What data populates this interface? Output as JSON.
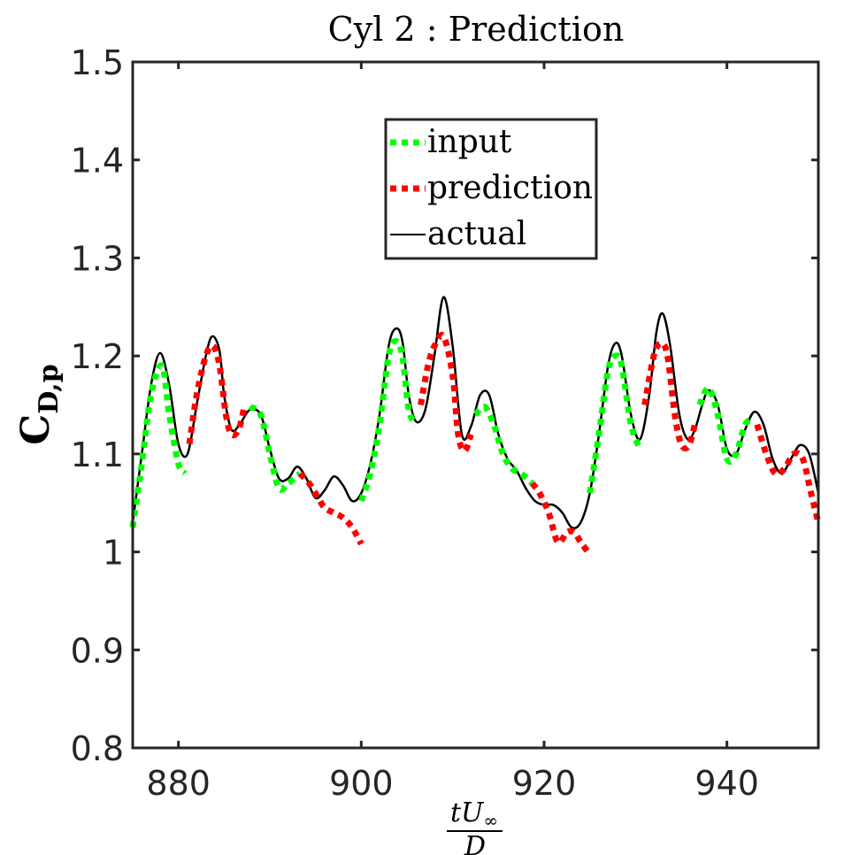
{
  "chart_data": {
    "type": "line",
    "title": "Cyl 2 : Prediction",
    "ylabel_main": "C",
    "ylabel_sub": "D,p",
    "xlabel_num": "tU",
    "xlabel_num_sub": "∞",
    "xlabel_den": "D",
    "xlim": [
      875,
      950
    ],
    "ylim": [
      0.8,
      1.5
    ],
    "xticks": [
      880,
      900,
      920,
      940
    ],
    "xtick_labels": [
      "880",
      "900",
      "920",
      "940"
    ],
    "yticks": [
      0.8,
      0.9,
      1.0,
      1.1,
      1.2,
      1.3,
      1.4,
      1.5
    ],
    "ytick_labels": [
      "0.8",
      "0.9",
      "1",
      "1.1",
      "1.2",
      "1.3",
      "1.4",
      "1.5"
    ],
    "legend": {
      "position": "upper-center",
      "entries": [
        "input",
        "prediction",
        "actual"
      ]
    },
    "colors": {
      "input": "#00ff00",
      "prediction": "#ff0000",
      "actual": "#000000",
      "axes": "#262626"
    },
    "series": [
      {
        "name": "actual",
        "style": "solid",
        "x": [
          875,
          876,
          877,
          878,
          879,
          880,
          881,
          882,
          883,
          883.7,
          884.5,
          885,
          885.8,
          886.7,
          887.8,
          889,
          890,
          891,
          892,
          893,
          894,
          895,
          896,
          897,
          898,
          899,
          900,
          901,
          902,
          903,
          903.8,
          904.5,
          905.2,
          906,
          907,
          908,
          909,
          910,
          911,
          912,
          913,
          914,
          915,
          916,
          917,
          918,
          919,
          920,
          921,
          922,
          923,
          924,
          925,
          926,
          927,
          927.8,
          928.5,
          929.5,
          930.5,
          931.5,
          932.3,
          933,
          933.8,
          934.8,
          935.7,
          936.5,
          937.3,
          938,
          939,
          940,
          941,
          942,
          943,
          944,
          945,
          946,
          947,
          948,
          949,
          950
        ],
        "y": [
          1.03,
          1.1,
          1.17,
          1.203,
          1.17,
          1.11,
          1.1,
          1.15,
          1.2,
          1.22,
          1.205,
          1.16,
          1.125,
          1.13,
          1.145,
          1.14,
          1.105,
          1.075,
          1.075,
          1.087,
          1.075,
          1.055,
          1.063,
          1.077,
          1.068,
          1.052,
          1.06,
          1.09,
          1.14,
          1.21,
          1.228,
          1.215,
          1.16,
          1.133,
          1.145,
          1.2,
          1.26,
          1.21,
          1.12,
          1.128,
          1.16,
          1.16,
          1.12,
          1.095,
          1.083,
          1.065,
          1.052,
          1.048,
          1.048,
          1.04,
          1.025,
          1.03,
          1.06,
          1.12,
          1.19,
          1.213,
          1.2,
          1.14,
          1.115,
          1.16,
          1.225,
          1.243,
          1.21,
          1.14,
          1.115,
          1.125,
          1.15,
          1.165,
          1.15,
          1.105,
          1.1,
          1.125,
          1.143,
          1.13,
          1.095,
          1.08,
          1.095,
          1.109,
          1.1,
          1.06
        ]
      },
      {
        "name": "input",
        "style": "dotted",
        "segments": [
          {
            "x": [
              875,
              876,
              877,
              878.2,
              879,
              880,
              880.7
            ],
            "y": [
              1.025,
              1.09,
              1.16,
              1.19,
              1.14,
              1.09,
              1.08
            ]
          },
          {
            "x": [
              887.8,
              889,
              890,
              891,
              892,
              893.3
            ],
            "y": [
              1.148,
              1.14,
              1.1,
              1.065,
              1.07,
              1.08
            ]
          },
          {
            "x": [
              900,
              901,
              902,
              903,
              903.8,
              904.5,
              905.2,
              906
            ],
            "y": [
              1.052,
              1.08,
              1.13,
              1.2,
              1.215,
              1.2,
              1.145,
              1.13
            ]
          },
          {
            "x": [
              912.5,
              913.5,
              914.5,
              915.5,
              916.5,
              917.5,
              918.7
            ],
            "y": [
              1.14,
              1.148,
              1.13,
              1.1,
              1.085,
              1.08,
              1.07
            ]
          },
          {
            "x": [
              925,
              926,
              927,
              927.8,
              928.5,
              929.5,
              930.5
            ],
            "y": [
              1.06,
              1.12,
              1.185,
              1.2,
              1.19,
              1.13,
              1.105
            ]
          },
          {
            "x": [
              937,
              938,
              939,
              940,
              941,
              942,
              943
            ],
            "y": [
              1.15,
              1.167,
              1.14,
              1.095,
              1.1,
              1.13,
              1.135
            ]
          }
        ]
      },
      {
        "name": "prediction",
        "style": "dotted",
        "segments": [
          {
            "x": [
              881.2,
              882,
              883,
              883.8,
              884.5,
              885.2,
              885.8,
              886.6,
              887.2
            ],
            "y": [
              1.11,
              1.16,
              1.2,
              1.21,
              1.19,
              1.14,
              1.12,
              1.125,
              1.148
            ]
          },
          {
            "x": [
              893.3,
              894.3,
              895.3,
              896,
              897,
              898,
              899,
              900
            ],
            "y": [
              1.08,
              1.07,
              1.055,
              1.045,
              1.04,
              1.035,
              1.025,
              1.008
            ]
          },
          {
            "x": [
              906.5,
              907.3,
              908,
              909,
              910,
              910.6,
              911.3,
              912
            ],
            "y": [
              1.15,
              1.19,
              1.21,
              1.22,
              1.18,
              1.12,
              1.103,
              1.12
            ]
          },
          {
            "x": [
              918.7,
              919.5,
              920.5,
              921.5,
              922.5,
              923.3,
              924,
              924.8
            ],
            "y": [
              1.07,
              1.06,
              1.04,
              1.01,
              1.02,
              1.02,
              1.01,
              1.0
            ]
          },
          {
            "x": [
              931,
              932,
              932.8,
              933.5,
              934.3,
              935,
              935.8,
              936.5
            ],
            "y": [
              1.15,
              1.2,
              1.213,
              1.2,
              1.14,
              1.11,
              1.108,
              1.13
            ]
          },
          {
            "x": [
              943.3,
              944.3,
              945.3,
              946.3,
              947.3,
              948.3,
              949.2,
              950
            ],
            "y": [
              1.13,
              1.1,
              1.08,
              1.085,
              1.1,
              1.095,
              1.06,
              1.03
            ]
          }
        ]
      }
    ]
  }
}
